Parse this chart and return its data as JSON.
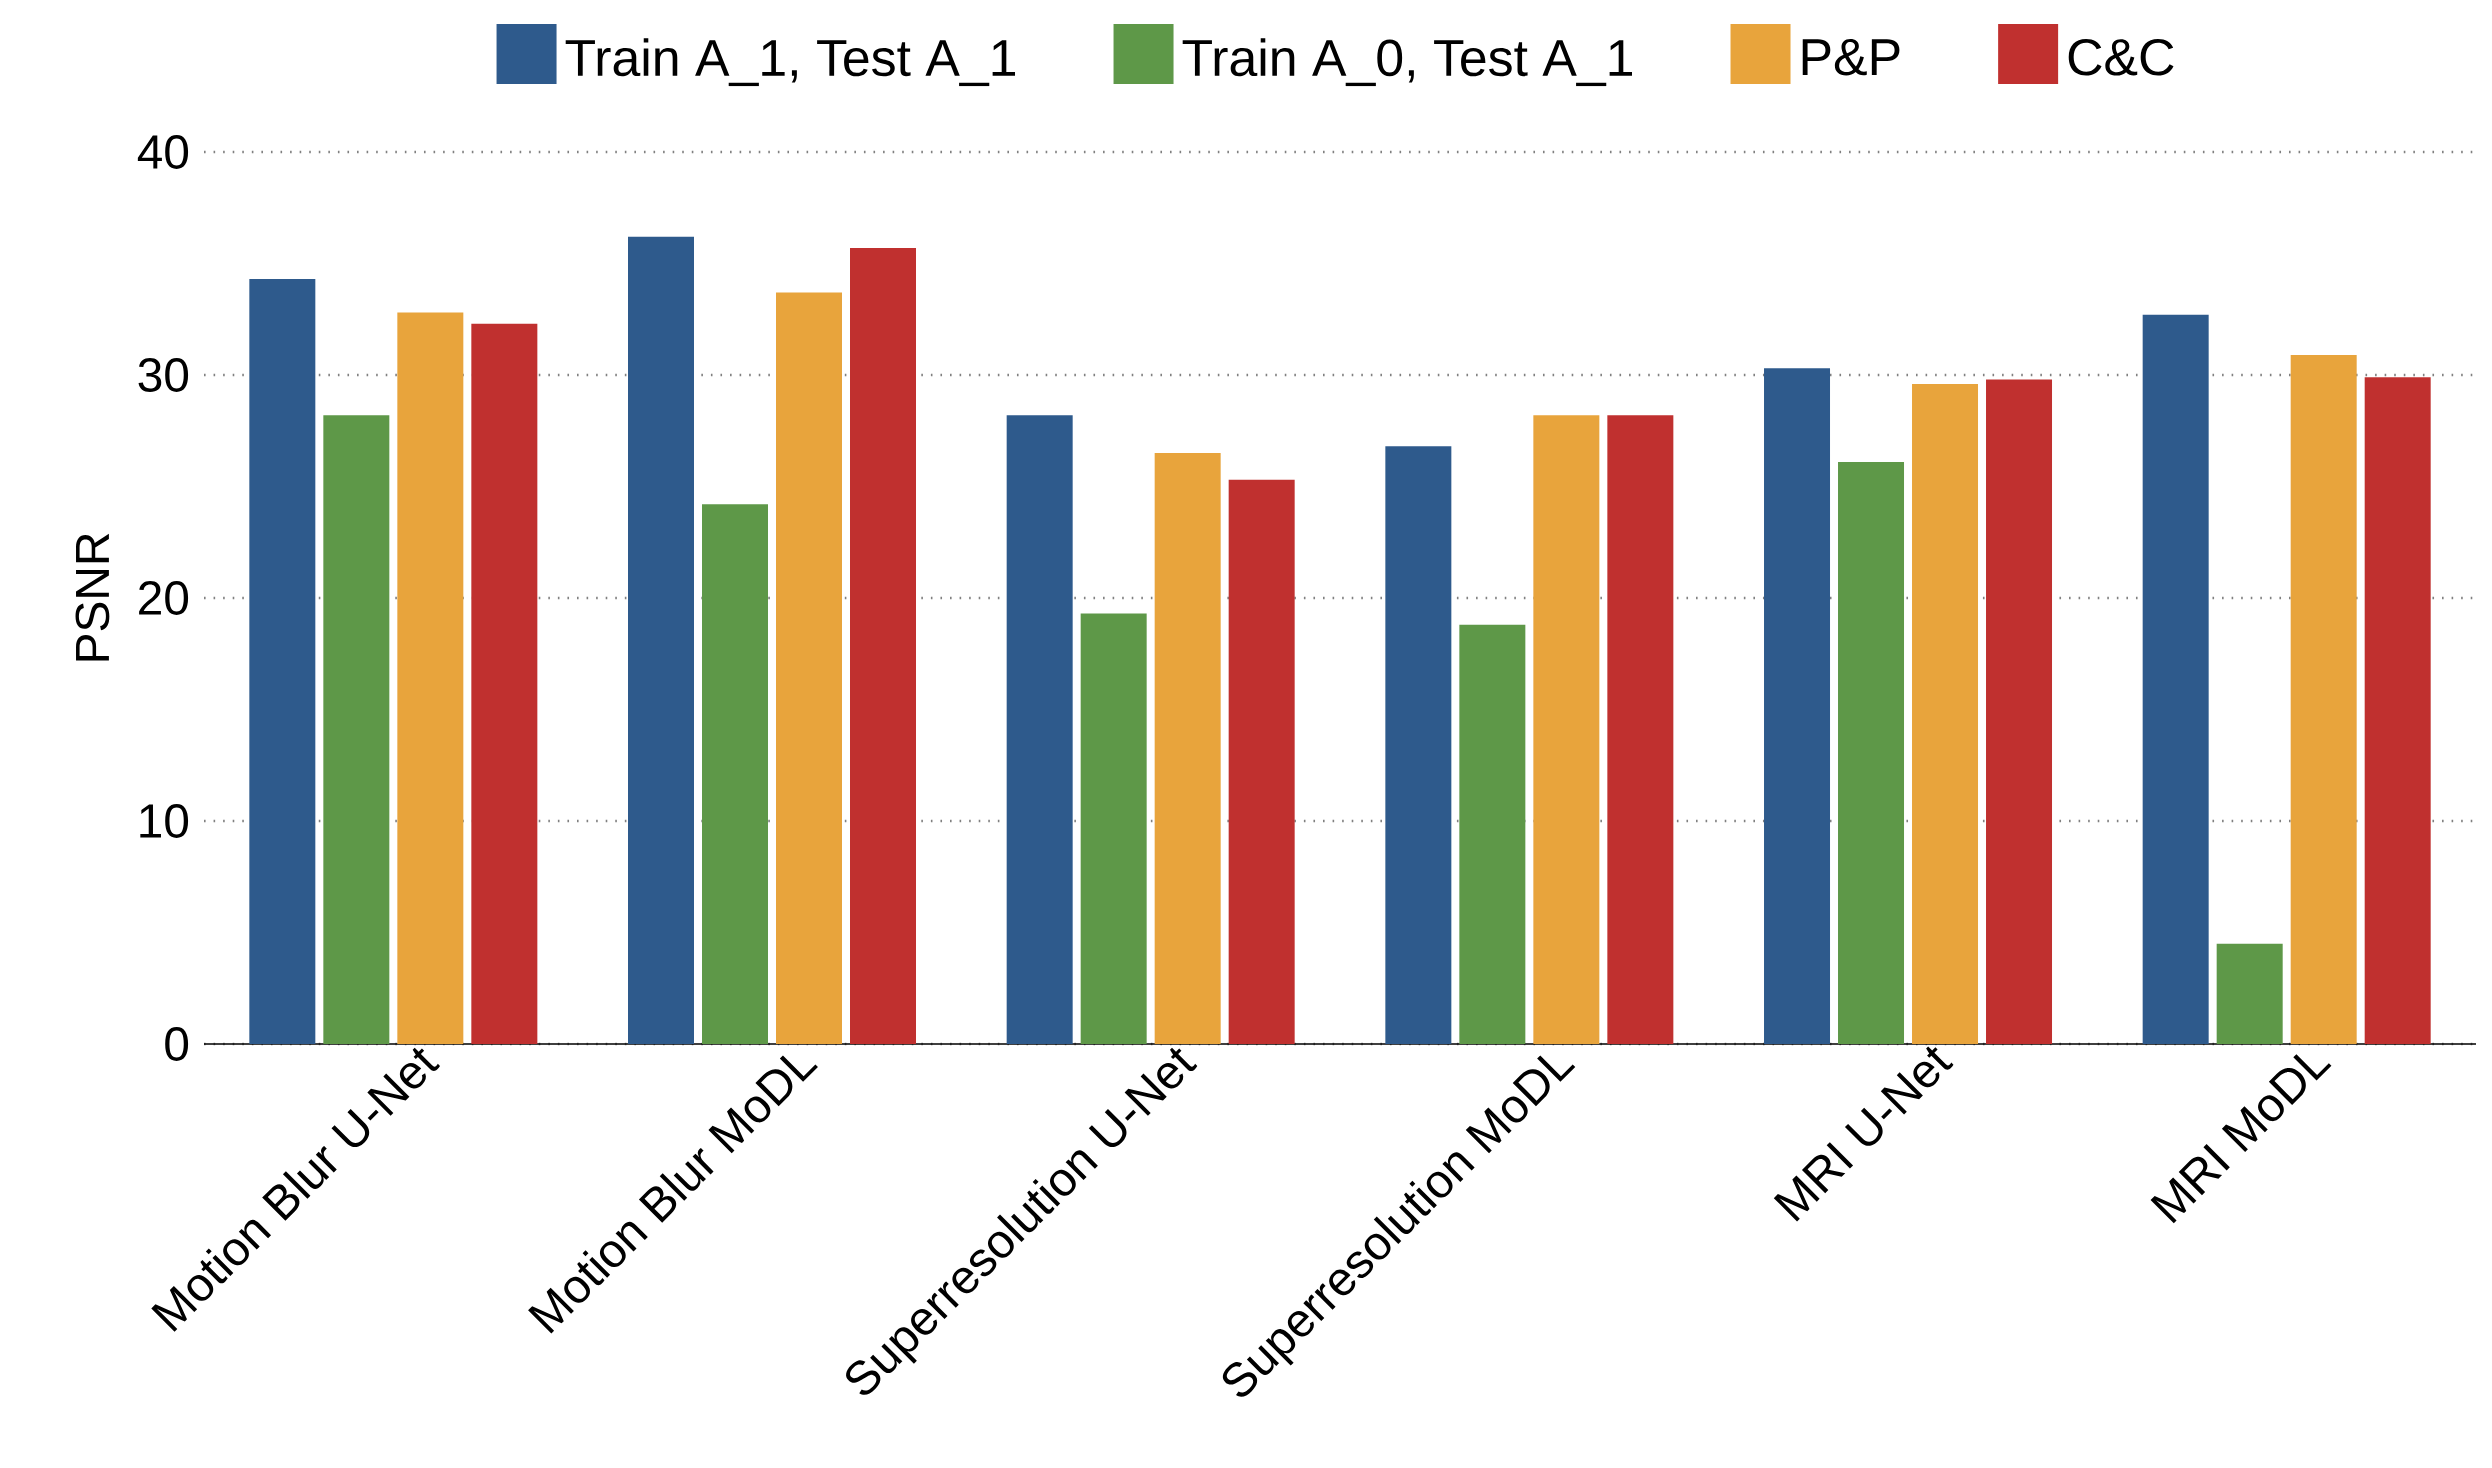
{
  "chart_data": {
    "type": "bar",
    "ylabel": "PSNR",
    "categories": [
      "Motion Blur U-Net",
      "Motion Blur MoDL",
      "Superresolution U-Net",
      "Superresolution MoDL",
      "MRI U-Net",
      "MRI MoDL"
    ],
    "series": [
      {
        "name": "Train A_1, Test A_1",
        "color": "#2e5a8c",
        "values": [
          34.3,
          36.2,
          28.2,
          26.8,
          30.3,
          32.7
        ]
      },
      {
        "name": "Train A_0, Test A_1",
        "color": "#5e9848",
        "values": [
          28.2,
          24.2,
          19.3,
          18.8,
          26.1,
          4.5
        ]
      },
      {
        "name": "P&P",
        "color": "#e8a43c",
        "values": [
          32.8,
          33.7,
          26.5,
          28.2,
          29.6,
          30.9
        ]
      },
      {
        "name": "C&C",
        "color": "#c0302f",
        "values": [
          32.3,
          35.7,
          25.3,
          28.2,
          29.8,
          29.9
        ]
      }
    ],
    "ylim": [
      0,
      40
    ],
    "yticks": [
      0,
      10,
      20,
      30,
      40
    ],
    "grid": "y",
    "legend": "top"
  }
}
